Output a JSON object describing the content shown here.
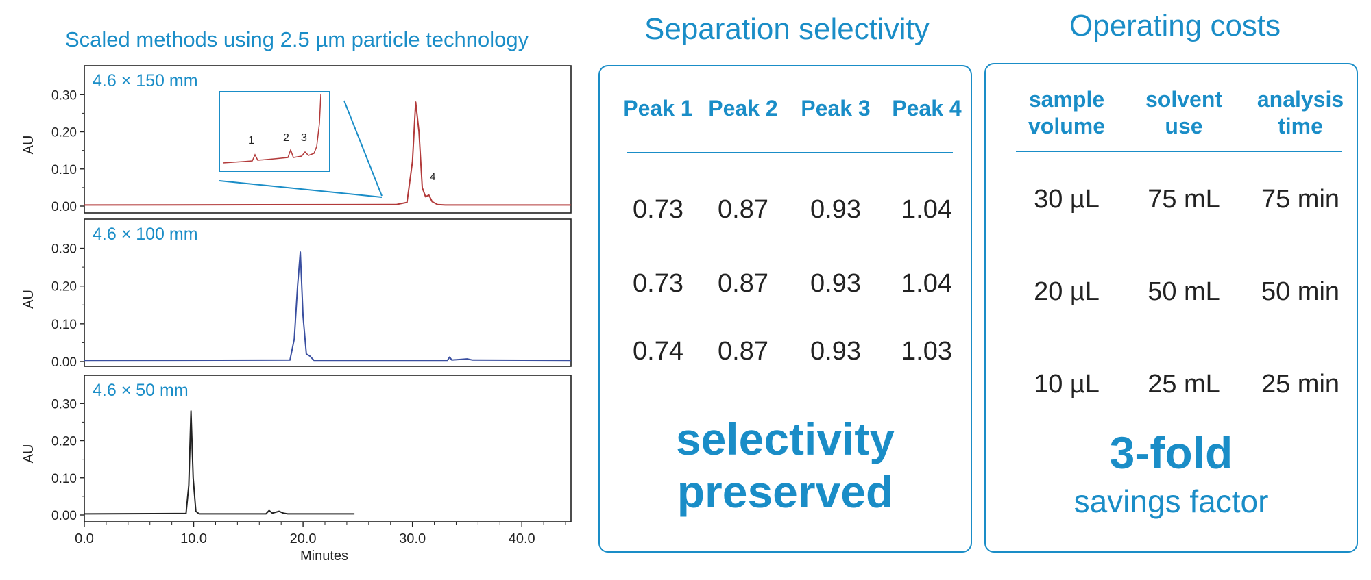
{
  "chromatograms": {
    "title": "Scaled methods using 2.5 µm particle technology",
    "x_axis_label": "Minutes",
    "inset_peak_labels": [
      "1",
      "2",
      "3"
    ],
    "peak4_label": "4"
  },
  "chart_data": [
    {
      "type": "line",
      "title": "4.6 × 150 mm",
      "ylabel": "AU",
      "xlim": [
        0,
        44.5
      ],
      "ylim": [
        0,
        0.33
      ],
      "yticks": [
        "0.00",
        "0.10",
        "0.20",
        "0.30"
      ],
      "color": "#b23a3a",
      "series": [
        {
          "x": [
            0,
            28.5,
            29.5,
            30.0,
            30.3,
            30.6,
            30.9,
            31.2,
            31.5,
            31.8,
            32.3,
            33,
            44.5
          ],
          "y": [
            0.003,
            0.004,
            0.01,
            0.12,
            0.28,
            0.2,
            0.05,
            0.025,
            0.03,
            0.012,
            0.004,
            0.003,
            0.003
          ]
        }
      ]
    },
    {
      "type": "line",
      "title": "4.6 × 100 mm",
      "ylabel": "AU",
      "xlim": [
        0,
        44.5
      ],
      "ylim": [
        0,
        0.33
      ],
      "yticks": [
        "0.00",
        "0.10",
        "0.20",
        "0.30"
      ],
      "color": "#3a4fa0",
      "series": [
        {
          "x": [
            0,
            18.8,
            19.2,
            19.5,
            19.75,
            20.0,
            20.3,
            20.6,
            21.0,
            33.2,
            33.4,
            33.6,
            34.5,
            35,
            35.5,
            44.5
          ],
          "y": [
            0.003,
            0.004,
            0.06,
            0.2,
            0.29,
            0.12,
            0.02,
            0.015,
            0.003,
            0.003,
            0.012,
            0.004,
            0.006,
            0.007,
            0.004,
            0.003
          ]
        }
      ]
    },
    {
      "type": "line",
      "title": "4.6 × 50 mm",
      "ylabel": "AU",
      "xlabel": "Minutes",
      "xlim": [
        0,
        44.5
      ],
      "ylim": [
        0,
        0.33
      ],
      "xticks": [
        "0.0",
        "10.0",
        "20.0",
        "30.0",
        "40.0"
      ],
      "yticks": [
        "0.00",
        "0.10",
        "0.20",
        "0.30"
      ],
      "color": "#222222",
      "series": [
        {
          "x": [
            0,
            9.3,
            9.55,
            9.75,
            9.95,
            10.2,
            10.5,
            16.6,
            16.9,
            17.2,
            17.8,
            18.2,
            18.6,
            24.7
          ],
          "y": [
            0.003,
            0.004,
            0.08,
            0.28,
            0.1,
            0.01,
            0.003,
            0.003,
            0.012,
            0.005,
            0.01,
            0.005,
            0.003,
            0.003
          ]
        }
      ]
    }
  ],
  "selectivity": {
    "heading": "Separation selectivity",
    "columns": [
      "Peak 1",
      "Peak 2",
      "Peak 3",
      "Peak 4"
    ],
    "rows": [
      [
        "0.73",
        "0.87",
        "0.93",
        "1.04"
      ],
      [
        "0.73",
        "0.87",
        "0.93",
        "1.04"
      ],
      [
        "0.74",
        "0.87",
        "0.93",
        "1.03"
      ]
    ],
    "footer_line1": "selectivity",
    "footer_line2": "preserved"
  },
  "costs": {
    "heading": "Operating costs",
    "columns": [
      [
        "sample",
        "volume"
      ],
      [
        "solvent",
        "use"
      ],
      [
        "analysis",
        "time"
      ]
    ],
    "rows": [
      [
        "30 µL",
        "75 mL",
        "75 min"
      ],
      [
        "20 µL",
        "50 mL",
        "50 min"
      ],
      [
        "10 µL",
        "25 mL",
        "25 min"
      ]
    ],
    "footer_big": "3-fold",
    "footer_small": "savings factor"
  },
  "colors": {
    "accent": "#1a8dc7",
    "red_trace": "#b23a3a",
    "blue_trace": "#3a4fa0",
    "black_trace": "#222222"
  }
}
